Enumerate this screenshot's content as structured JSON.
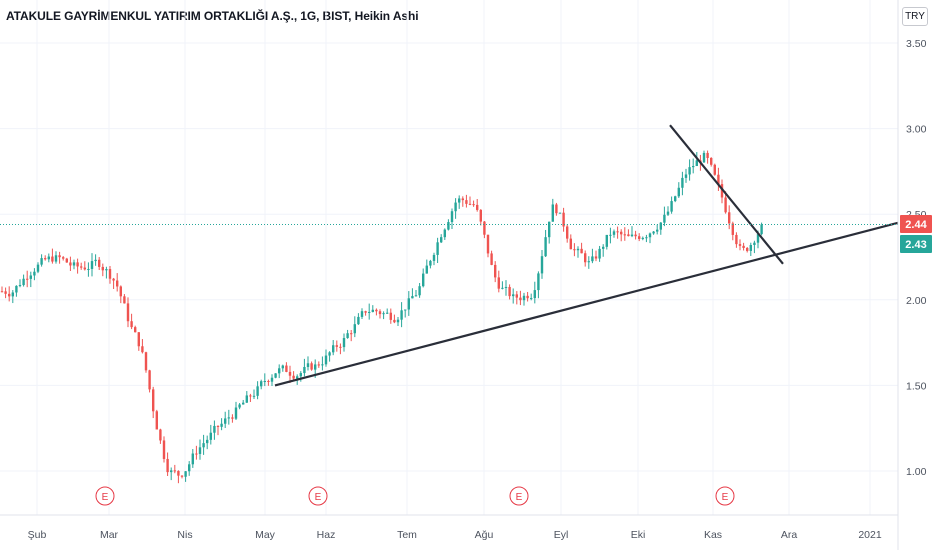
{
  "title": "ATAKULE GAYRİMENKUL YATIRIM ORTAKLIĞI A.Ş., 1G, BIST, Heikin Ashi",
  "currency_button": "TRY",
  "colors": {
    "up": "#26a69a",
    "down": "#ef5350",
    "grid": "#f0f3fa",
    "text": "#131722",
    "trendline": "#2a2e39",
    "earnings": "#e63946"
  },
  "chart_data": {
    "type": "candlestick",
    "yticks": [
      "3.50",
      "3.00",
      "2.50",
      "2.00",
      "1.50",
      "1.00"
    ],
    "ylim": [
      0.9,
      3.6
    ],
    "xticks": [
      "Şub",
      "Mar",
      "Nis",
      "May",
      "Haz",
      "Tem",
      "Ağu",
      "Eyl",
      "Eki",
      "Kas",
      "Ara",
      "2021"
    ],
    "price_labels": [
      {
        "label": "2.44",
        "value": 2.44,
        "color": "#ef5350"
      },
      {
        "label": "2.43",
        "value": 2.43,
        "color": "#26a69a"
      }
    ],
    "earnings_marker": "E",
    "earnings_dates": [
      "Mar",
      "Haz",
      "Ağu",
      "Kas"
    ],
    "trendlines": [
      {
        "from": [
          "May",
          1.5
        ],
        "to": [
          "2021",
          2.45
        ]
      },
      {
        "from": [
          "Eki",
          3.02
        ],
        "to": [
          "Kas",
          2.21
        ]
      }
    ],
    "price_path": [
      [
        "Şub",
        2.05
      ],
      [
        "Şub",
        2.2
      ],
      [
        "Şub",
        2.25
      ],
      [
        "Şub",
        2.18
      ],
      [
        "Şub",
        2.22
      ],
      [
        "Mar",
        2.1
      ],
      [
        "Mar",
        1.85
      ],
      [
        "Mar",
        1.7
      ],
      [
        "Mar",
        1.3
      ],
      [
        "Mar",
        1.0
      ],
      [
        "Mar",
        0.97
      ],
      [
        "Nis",
        1.15
      ],
      [
        "Nis",
        1.3
      ],
      [
        "Nis",
        1.45
      ],
      [
        "May",
        1.6
      ],
      [
        "May",
        1.57
      ],
      [
        "May",
        1.62
      ],
      [
        "Haz",
        1.75
      ],
      [
        "Haz",
        1.95
      ],
      [
        "Haz",
        1.9
      ],
      [
        "Tem",
        2.05
      ],
      [
        "Tem",
        2.35
      ],
      [
        "Tem",
        2.6
      ],
      [
        "Tem",
        2.55
      ],
      [
        "Ağu",
        2.1
      ],
      [
        "Ağu",
        2.0
      ],
      [
        "Ağu",
        2.05
      ],
      [
        "Ağu",
        2.6
      ],
      [
        "Eyl",
        2.3
      ],
      [
        "Eyl",
        2.2
      ],
      [
        "Eyl",
        2.4
      ],
      [
        "Eyl",
        2.35
      ],
      [
        "Eki",
        2.4
      ],
      [
        "Eki",
        2.5
      ],
      [
        "Eki",
        2.75
      ],
      [
        "Eki",
        2.85
      ],
      [
        "Kas",
        2.55
      ],
      [
        "Kas",
        2.25
      ],
      [
        "Kas",
        2.45
      ],
      [
        "Kas",
        2.42
      ]
    ]
  }
}
